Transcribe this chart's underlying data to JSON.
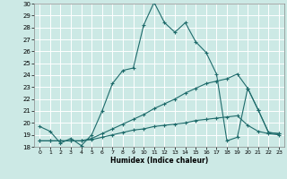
{
  "title": "",
  "xlabel": "Humidex (Indice chaleur)",
  "ylabel": "",
  "xlim": [
    -0.5,
    23.5
  ],
  "ylim": [
    18,
    30
  ],
  "yticks": [
    18,
    19,
    20,
    21,
    22,
    23,
    24,
    25,
    26,
    27,
    28,
    29,
    30
  ],
  "xticks": [
    0,
    1,
    2,
    3,
    4,
    5,
    6,
    7,
    8,
    9,
    10,
    11,
    12,
    13,
    14,
    15,
    16,
    17,
    18,
    19,
    20,
    21,
    22,
    23
  ],
  "bg_color": "#cce9e5",
  "grid_color": "#ffffff",
  "line_color": "#1e6b6b",
  "line1_x": [
    0,
    1,
    2,
    3,
    4,
    5,
    6,
    7,
    8,
    9,
    10,
    11,
    12,
    13,
    14,
    15,
    16,
    17,
    18,
    19,
    20,
    21,
    22,
    23
  ],
  "line1_y": [
    19.7,
    19.3,
    18.3,
    18.7,
    18.1,
    19.0,
    21.0,
    23.3,
    24.4,
    24.6,
    28.2,
    30.1,
    28.4,
    27.6,
    28.4,
    26.8,
    25.9,
    24.1,
    18.5,
    18.8,
    22.9,
    21.1,
    19.2,
    19.1
  ],
  "line2_x": [
    0,
    1,
    2,
    3,
    4,
    5,
    6,
    7,
    8,
    9,
    10,
    11,
    12,
    13,
    14,
    15,
    16,
    17,
    18,
    19,
    20,
    21,
    22,
    23
  ],
  "line2_y": [
    18.5,
    18.5,
    18.5,
    18.5,
    18.5,
    18.7,
    19.1,
    19.5,
    19.9,
    20.3,
    20.7,
    21.2,
    21.6,
    22.0,
    22.5,
    22.9,
    23.3,
    23.5,
    23.7,
    24.1,
    22.9,
    21.1,
    19.2,
    19.1
  ],
  "line3_x": [
    0,
    1,
    2,
    3,
    4,
    5,
    6,
    7,
    8,
    9,
    10,
    11,
    12,
    13,
    14,
    15,
    16,
    17,
    18,
    19,
    20,
    21,
    22,
    23
  ],
  "line3_y": [
    18.5,
    18.5,
    18.5,
    18.5,
    18.5,
    18.6,
    18.8,
    19.0,
    19.2,
    19.4,
    19.5,
    19.7,
    19.8,
    19.9,
    20.0,
    20.2,
    20.3,
    20.4,
    20.5,
    20.6,
    19.8,
    19.3,
    19.1,
    19.0
  ]
}
